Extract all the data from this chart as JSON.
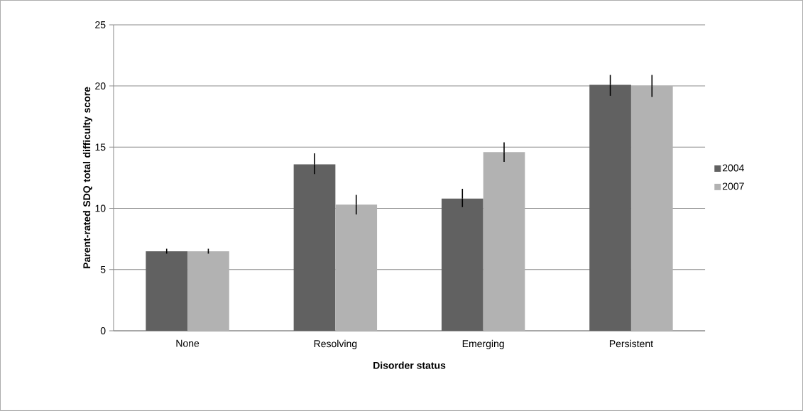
{
  "chart_data": {
    "type": "bar",
    "xlabel": "Disorder status",
    "ylabel": "Parent-rated SDQ total difficulty score",
    "categories": [
      "None",
      "Resolving",
      "Emerging",
      "Persistent"
    ],
    "series": [
      {
        "name": "2004",
        "color": "#616161",
        "values": [
          6.5,
          13.6,
          10.8,
          20.1
        ],
        "errors": [
          0.2,
          [
            12.8,
            14.5
          ],
          [
            10.1,
            11.6
          ],
          [
            19.2,
            20.9
          ]
        ]
      },
      {
        "name": "2007",
        "color": "#b2b2b2",
        "values": [
          6.5,
          10.3,
          14.6,
          20.0
        ],
        "errors": [
          0.2,
          [
            9.5,
            11.1
          ],
          [
            13.8,
            15.4
          ],
          [
            19.1,
            20.9
          ]
        ]
      }
    ],
    "ylim": [
      0,
      25
    ],
    "yticks": [
      0,
      5,
      10,
      15,
      20,
      25
    ],
    "grid": "y",
    "legend": "right"
  }
}
